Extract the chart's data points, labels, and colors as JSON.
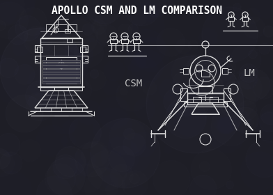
{
  "title": "APOLLO CSM AND LM COMPARISON",
  "title_fontsize": 10.5,
  "title_color": "#FFFFFF",
  "title_font": "monospace",
  "bg_color": "#1e1e28",
  "line_color": "#DDDDDD",
  "lw": 1.0,
  "csm_label": "CSM",
  "lm_label": "LM",
  "label_fontsize": 9,
  "label_color": "#BBBBBB",
  "figsize": [
    3.92,
    2.8
  ],
  "dpi": 100,
  "chalk_seed": 42
}
